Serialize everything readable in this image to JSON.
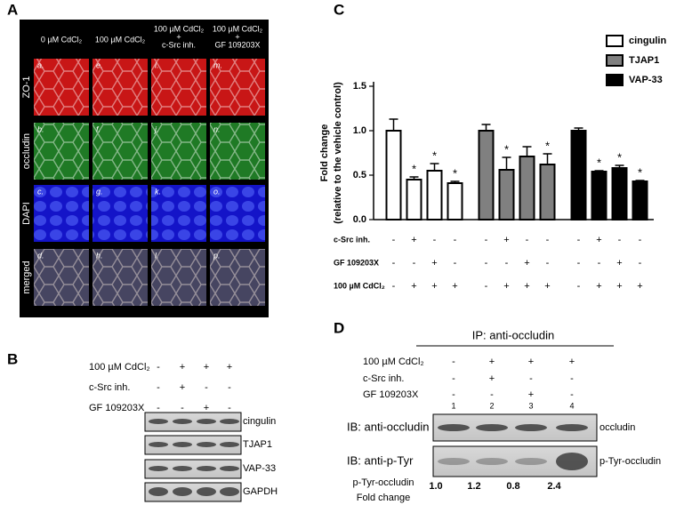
{
  "panel_a": {
    "label": "A",
    "column_headers": [
      [
        "0 µM CdCl₂"
      ],
      [
        "100 µM CdCl₂"
      ],
      [
        "100 µM CdCl₂",
        "+",
        "c-Src inh."
      ],
      [
        "100 µM CdCl₂",
        "+",
        "GF 109203X"
      ]
    ],
    "row_labels": [
      "ZO-1",
      "occludin",
      "DAPI",
      "merged"
    ],
    "tile_letters": [
      [
        "a.",
        "e.",
        "i.",
        "m."
      ],
      [
        "b.",
        "f.",
        "j.",
        "n."
      ],
      [
        "c.",
        "g.",
        "k.",
        "o."
      ],
      [
        "d.",
        "h.",
        "l.",
        "p."
      ]
    ]
  },
  "panel_b": {
    "label": "B",
    "treatments": [
      {
        "label": "100 µM CdCl₂",
        "signs": [
          "-",
          "+",
          "+",
          "+"
        ]
      },
      {
        "label": "c-Src inh.",
        "signs": [
          "-",
          "+",
          "-",
          "-"
        ]
      },
      {
        "label": "GF 109203X",
        "signs": [
          "-",
          "-",
          "+",
          "-"
        ]
      }
    ],
    "blots": [
      "cingulin",
      "TJAP1",
      "VAP-33",
      "GAPDH"
    ]
  },
  "chart_data": {
    "type": "bar",
    "panel_label": "C",
    "y_label": [
      "Fold change",
      "(relative to the vehicle control)"
    ],
    "categories": [
      null,
      null,
      null,
      null
    ],
    "series": [
      {
        "name": "cingulin",
        "color": "#ffffff",
        "values": [
          1.0,
          0.45,
          0.55,
          0.41
        ],
        "errors": [
          0.13,
          0.03,
          0.08,
          0.02
        ],
        "significance": [
          null,
          "*",
          "*",
          "*"
        ]
      },
      {
        "name": "TJAP1",
        "color": "#808080",
        "values": [
          1.0,
          0.56,
          0.71,
          0.62
        ],
        "errors": [
          0.07,
          0.14,
          0.11,
          0.12
        ],
        "significance": [
          null,
          "*",
          null,
          "*"
        ]
      },
      {
        "name": "VAP-33",
        "color": "#000000",
        "values": [
          1.0,
          0.54,
          0.58,
          0.43
        ],
        "errors": [
          0.03,
          0.01,
          0.03,
          0.01
        ],
        "significance": [
          null,
          "*",
          "*",
          "*"
        ]
      }
    ],
    "ylim": [
      0,
      1.5
    ],
    "yticks": [
      {
        "value": 0,
        "label": "0.0"
      },
      {
        "value": 0.5,
        "label": "0.5"
      },
      {
        "value": 1.0,
        "label": "1.0"
      },
      {
        "value": 1.5,
        "label": "1.5"
      }
    ],
    "legend": "upper right",
    "treatments": [
      {
        "label": "c-Src inh.",
        "signs": [
          "-",
          "+",
          "-",
          "-"
        ]
      },
      {
        "label": "GF 109203X",
        "signs": [
          "-",
          "-",
          "+",
          "-"
        ]
      },
      {
        "label": "100 µM CdCl₂",
        "signs": [
          "-",
          "+",
          "+",
          "+"
        ]
      }
    ]
  },
  "panel_d": {
    "label": "D",
    "ip": "IP: anti-occludin",
    "treatments": [
      {
        "label": "100 µM CdCl₂",
        "signs": [
          "-",
          "+",
          "+",
          "+"
        ]
      },
      {
        "label": "c-Src inh.",
        "signs": [
          "-",
          "+",
          "-",
          "-"
        ]
      },
      {
        "label": "GF 109203X",
        "signs": [
          "-",
          "-",
          "+",
          "-"
        ]
      }
    ],
    "lanes": [
      "1",
      "2",
      "3",
      "4"
    ],
    "blots": [
      {
        "ib": "IB: anti-occludin",
        "band": "occludin"
      },
      {
        "ib": "IB: anti-p-Tyr",
        "band": "p-Tyr-occludin"
      }
    ],
    "quant_label": [
      "p-Tyr-occludin",
      "Fold change"
    ],
    "quant_values": [
      "1.0",
      "1.2",
      "0.8",
      "2.4"
    ]
  }
}
